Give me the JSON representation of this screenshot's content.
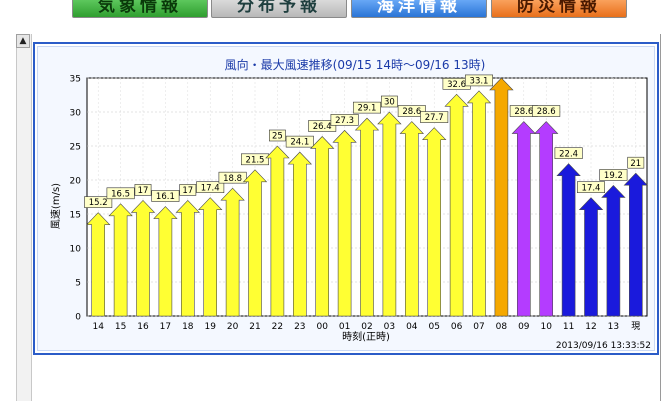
{
  "tabs": [
    {
      "label": "気象情報"
    },
    {
      "label": "分布予報"
    },
    {
      "label": "海洋情報"
    },
    {
      "label": "防災情報"
    }
  ],
  "chart_data": {
    "type": "bar",
    "title": "風向・最大風速推移(09/15 14時〜09/16 13時)",
    "xlabel": "時刻(正時)",
    "ylabel": "風速(m/s)",
    "ylim": [
      0,
      35
    ],
    "yticks": [
      0,
      5,
      10,
      15,
      20,
      25,
      30,
      35
    ],
    "grid": true,
    "timestamp": "2013/09/16 13:33:52",
    "categories": [
      "14",
      "15",
      "16",
      "17",
      "18",
      "19",
      "20",
      "21",
      "22",
      "23",
      "00",
      "01",
      "02",
      "03",
      "04",
      "05",
      "06",
      "07",
      "08",
      "09",
      "10",
      "11",
      "12",
      "13",
      "現"
    ],
    "values": [
      15.2,
      16.5,
      17,
      16.1,
      17,
      17.4,
      18.8,
      21.5,
      25,
      24.1,
      26.4,
      27.3,
      29.1,
      30,
      28.6,
      27.7,
      32.6,
      33.1,
      35,
      28.6,
      28.6,
      22.4,
      17.4,
      19.2,
      21
    ],
    "labels": [
      "15.2",
      "16.5",
      "17",
      "16.1",
      "17",
      "17.4",
      "18.8",
      "21.5",
      "25",
      "24.1",
      "26.4",
      "27.3",
      "29.1",
      "30",
      "28.6",
      "27.7",
      "32.6",
      "33.1",
      "",
      "28.6",
      "28.6",
      "22.4",
      "17.4",
      "19.2",
      "21"
    ],
    "colors": [
      "yellow",
      "yellow",
      "yellow",
      "yellow",
      "yellow",
      "yellow",
      "yellow",
      "yellow",
      "yellow",
      "yellow",
      "yellow",
      "yellow",
      "yellow",
      "yellow",
      "yellow",
      "yellow",
      "yellow",
      "yellow",
      "orange",
      "purple",
      "purple",
      "blue",
      "blue",
      "blue",
      "blue"
    ],
    "palette": {
      "yellow": "#ffff33",
      "orange": "#f5a800",
      "purple": "#b43cff",
      "blue": "#1a1adc",
      "outline": "#7a7a00",
      "label_bg": "#ffffc8"
    }
  }
}
